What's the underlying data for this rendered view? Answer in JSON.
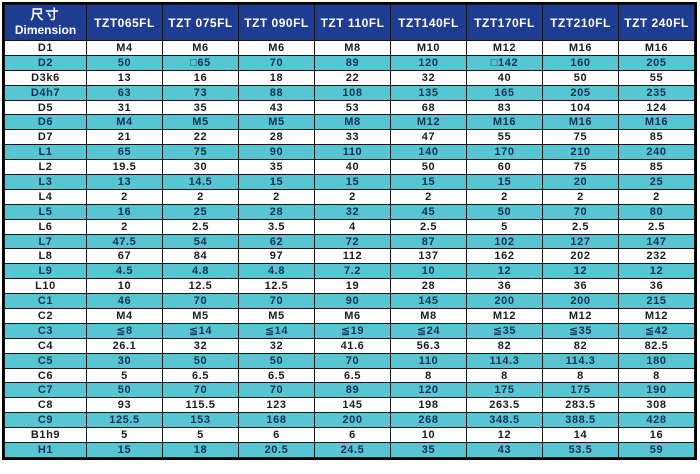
{
  "colors": {
    "header_bg": "#1e3c92",
    "header_text": "#ffffff",
    "stripe_bg": "#58c6d2",
    "stripe_text": "#14324f",
    "plain_bg": "#ffffff",
    "plain_text": "#1c1c1c",
    "grid_line": "#161616",
    "outer_border": "#000000"
  },
  "chart_data": {
    "type": "table",
    "title": "",
    "corner_header": {
      "zh": "尺寸",
      "en": "Dimension"
    },
    "columns": [
      "TZT065FL",
      "TZT 075FL",
      "TZT 090FL",
      "TZT 110FL",
      "TZT140FL",
      "TZT170FL",
      "TZT210FL",
      "TZT 240FL"
    ],
    "row_labels": [
      "D1",
      "D2",
      "D3k6",
      "D4h7",
      "D5",
      "D6",
      "D7",
      "L1",
      "L2",
      "L3",
      "L4",
      "L5",
      "L6",
      "L7",
      "L8",
      "L9",
      "L10",
      "C1",
      "C2",
      "C3",
      "C4",
      "C5",
      "C6",
      "C7",
      "C8",
      "C9",
      "B1h9",
      "H1"
    ],
    "rows": [
      {
        "label": "D1",
        "values": [
          "M4",
          "M6",
          "M6",
          "M8",
          "M10",
          "M12",
          "M16",
          "M16"
        ]
      },
      {
        "label": "D2",
        "values": [
          "50",
          "□65",
          "70",
          "89",
          "120",
          "□142",
          "160",
          "205"
        ]
      },
      {
        "label": "D3k6",
        "values": [
          "13",
          "16",
          "18",
          "22",
          "32",
          "40",
          "50",
          "55"
        ]
      },
      {
        "label": "D4h7",
        "values": [
          "63",
          "73",
          "88",
          "108",
          "135",
          "165",
          "205",
          "235"
        ]
      },
      {
        "label": "D5",
        "values": [
          "31",
          "35",
          "43",
          "53",
          "68",
          "83",
          "104",
          "124"
        ]
      },
      {
        "label": "D6",
        "values": [
          "M4",
          "M5",
          "M5",
          "M8",
          "M12",
          "M16",
          "M16",
          "M16"
        ]
      },
      {
        "label": "D7",
        "values": [
          "21",
          "22",
          "28",
          "33",
          "47",
          "55",
          "75",
          "85"
        ]
      },
      {
        "label": "L1",
        "values": [
          "65",
          "75",
          "90",
          "110",
          "140",
          "170",
          "210",
          "240"
        ]
      },
      {
        "label": "L2",
        "values": [
          "19.5",
          "30",
          "35",
          "40",
          "50",
          "60",
          "75",
          "85"
        ]
      },
      {
        "label": "L3",
        "values": [
          "13",
          "14.5",
          "15",
          "15",
          "15",
          "15",
          "20",
          "25"
        ]
      },
      {
        "label": "L4",
        "values": [
          "2",
          "2",
          "2",
          "2",
          "2",
          "2",
          "2",
          "2"
        ]
      },
      {
        "label": "L5",
        "values": [
          "16",
          "25",
          "28",
          "32",
          "45",
          "50",
          "70",
          "80"
        ]
      },
      {
        "label": "L6",
        "values": [
          "2",
          "2.5",
          "3.5",
          "4",
          "2.5",
          "5",
          "2.5",
          "2.5"
        ]
      },
      {
        "label": "L7",
        "values": [
          "47.5",
          "54",
          "62",
          "72",
          "87",
          "102",
          "127",
          "147"
        ]
      },
      {
        "label": "L8",
        "values": [
          "67",
          "84",
          "97",
          "112",
          "137",
          "162",
          "202",
          "232"
        ]
      },
      {
        "label": "L9",
        "values": [
          "4.5",
          "4.8",
          "4.8",
          "7.2",
          "10",
          "12",
          "12",
          "12"
        ]
      },
      {
        "label": "L10",
        "values": [
          "10",
          "12.5",
          "12.5",
          "19",
          "28",
          "36",
          "36",
          "36"
        ]
      },
      {
        "label": "C1",
        "values": [
          "46",
          "70",
          "70",
          "90",
          "145",
          "200",
          "200",
          "215"
        ]
      },
      {
        "label": "C2",
        "values": [
          "M4",
          "M5",
          "M5",
          "M6",
          "M8",
          "M12",
          "M12",
          "M12"
        ]
      },
      {
        "label": "C3",
        "values": [
          "≦8",
          "≦14",
          "≦14",
          "≦19",
          "≦24",
          "≦35",
          "≦35",
          "≦42"
        ]
      },
      {
        "label": "C4",
        "values": [
          "26.1",
          "32",
          "32",
          "41.6",
          "56.3",
          "82",
          "82",
          "82.5"
        ]
      },
      {
        "label": "C5",
        "values": [
          "30",
          "50",
          "50",
          "70",
          "110",
          "114.3",
          "114.3",
          "180"
        ]
      },
      {
        "label": "C6",
        "values": [
          "5",
          "6.5",
          "6.5",
          "6.5",
          "8",
          "8",
          "8",
          "8"
        ]
      },
      {
        "label": "C7",
        "values": [
          "50",
          "70",
          "70",
          "89",
          "120",
          "175",
          "175",
          "190"
        ]
      },
      {
        "label": "C8",
        "values": [
          "93",
          "115.5",
          "123",
          "145",
          "198",
          "263.5",
          "283.5",
          "308"
        ]
      },
      {
        "label": "C9",
        "values": [
          "125.5",
          "153",
          "168",
          "200",
          "268",
          "348.5",
          "388.5",
          "428"
        ]
      },
      {
        "label": "B1h9",
        "values": [
          "5",
          "5",
          "6",
          "6",
          "10",
          "12",
          "14",
          "16"
        ]
      },
      {
        "label": "H1",
        "values": [
          "15",
          "18",
          "20.5",
          "24.5",
          "35",
          "43",
          "53.5",
          "59"
        ]
      }
    ]
  }
}
